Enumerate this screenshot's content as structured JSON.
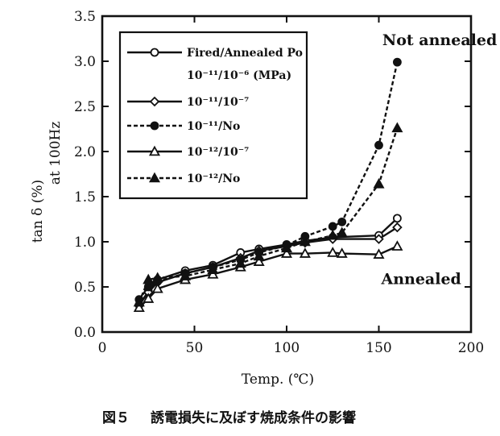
{
  "chart_data": {
    "type": "line",
    "xlabel": "Temp. (℃)",
    "ylabel": "tan δ (%)",
    "ylabel_secondary": "at 100Hz",
    "xlim": [
      0,
      200
    ],
    "ylim": [
      0.0,
      3.5
    ],
    "xticks": [
      "0",
      "50",
      "100",
      "150",
      "200"
    ],
    "yticks": [
      "0.0",
      "0.5",
      "1.0",
      "1.5",
      "2.0",
      "2.5",
      "3.0",
      "3.5"
    ],
    "grid": false,
    "legend_position": "top-left",
    "legend_header": "Fired/Annealed Po",
    "legend_units": "10⁻¹¹/10⁻⁶ (MPa)",
    "series": [
      {
        "name": "10⁻¹¹/10⁻⁶",
        "marker": "open-circle",
        "style": "solid",
        "x": [
          20,
          25,
          30,
          45,
          60,
          75,
          85,
          100,
          110,
          125,
          150,
          160
        ],
        "y": [
          0.3,
          0.45,
          0.58,
          0.68,
          0.74,
          0.88,
          0.92,
          0.97,
          1.01,
          1.05,
          1.07,
          1.26
        ]
      },
      {
        "name": "10⁻¹¹/10⁻⁷",
        "marker": "open-diamond",
        "style": "solid",
        "x": [
          20,
          25,
          30,
          45,
          60,
          75,
          85,
          100,
          110,
          125,
          150,
          160
        ],
        "y": [
          0.3,
          0.44,
          0.55,
          0.65,
          0.72,
          0.82,
          0.9,
          0.95,
          0.99,
          1.03,
          1.03,
          1.16
        ]
      },
      {
        "name": "10⁻¹¹/No",
        "marker": "filled-circle",
        "style": "dashed",
        "x": [
          20,
          25,
          30,
          45,
          60,
          75,
          85,
          100,
          110,
          125,
          130,
          150,
          160
        ],
        "y": [
          0.36,
          0.5,
          0.56,
          0.65,
          0.72,
          0.8,
          0.88,
          0.96,
          1.06,
          1.17,
          1.22,
          2.07,
          2.99
        ]
      },
      {
        "name": "10⁻¹²/10⁻⁷",
        "marker": "open-triangle",
        "style": "solid",
        "x": [
          20,
          25,
          30,
          45,
          60,
          75,
          85,
          100,
          110,
          125,
          130,
          150,
          160
        ],
        "y": [
          0.27,
          0.37,
          0.48,
          0.58,
          0.64,
          0.72,
          0.78,
          0.87,
          0.87,
          0.88,
          0.87,
          0.86,
          0.95
        ]
      },
      {
        "name": "10⁻¹²/No",
        "marker": "filled-triangle",
        "style": "dashed",
        "x": [
          20,
          25,
          30,
          45,
          60,
          75,
          85,
          100,
          110,
          125,
          130,
          150,
          160
        ],
        "y": [
          0.33,
          0.58,
          0.6,
          0.62,
          0.69,
          0.76,
          0.84,
          0.93,
          1.0,
          1.07,
          1.1,
          1.64,
          2.26
        ]
      }
    ],
    "annotations": [
      {
        "text": "Not annealed",
        "x": 183,
        "y": 3.18
      },
      {
        "text": "Annealed",
        "x": 173,
        "y": 0.53
      }
    ]
  },
  "caption": {
    "figure_number": "図５",
    "text": "誘電損失に及ぼす焼成条件の影響"
  }
}
